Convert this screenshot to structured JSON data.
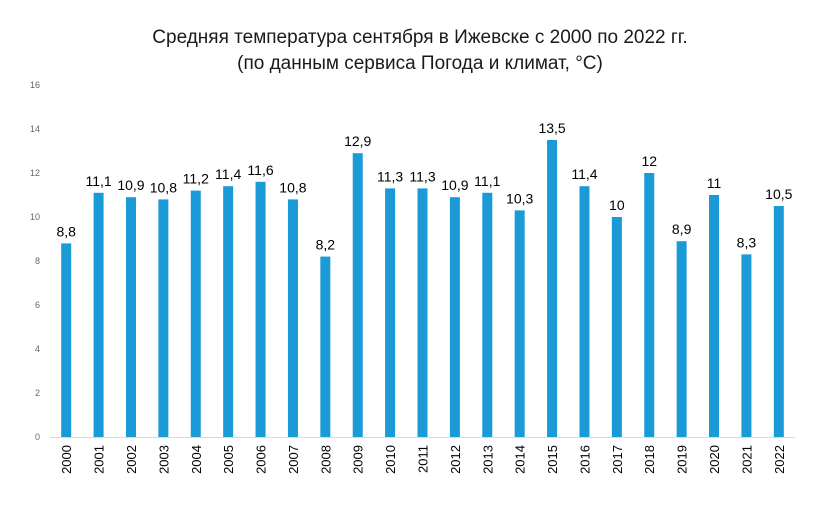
{
  "chart_data": {
    "type": "bar",
    "title": "Средняя температура сентября в Ижевске с 2000 по 2022 гг.",
    "subtitle": "(по данным сервиса Погода и климат, °С)",
    "xlabel": "",
    "ylabel": "",
    "categories": [
      "2000",
      "2001",
      "2002",
      "2003",
      "2004",
      "2005",
      "2006",
      "2007",
      "2008",
      "2009",
      "2010",
      "2011",
      "2012",
      "2013",
      "2014",
      "2015",
      "2016",
      "2017",
      "2018",
      "2019",
      "2020",
      "2021",
      "2022"
    ],
    "values": [
      8.8,
      11.1,
      10.9,
      10.8,
      11.2,
      11.4,
      11.6,
      10.8,
      8.2,
      12.9,
      11.3,
      11.3,
      10.9,
      11.1,
      10.3,
      13.5,
      11.4,
      10,
      12,
      8.9,
      11,
      8.3,
      10.5
    ],
    "data_labels": [
      "8,8",
      "11,1",
      "10,9",
      "10,8",
      "11,2",
      "11,4",
      "11,6",
      "10,8",
      "8,2",
      "12,9",
      "11,3",
      "11,3",
      "10,9",
      "11,1",
      "10,3",
      "13,5",
      "11,4",
      "10",
      "12",
      "8,9",
      "11",
      "8,3",
      "10,5"
    ],
    "ylim": [
      0,
      16
    ],
    "yticks": [
      0,
      2,
      4,
      6,
      8,
      10,
      12,
      14,
      16
    ],
    "grid": false,
    "legend": "none",
    "colors": {
      "bar": "#1a9ad6",
      "axis": "#d9d9d9"
    }
  }
}
